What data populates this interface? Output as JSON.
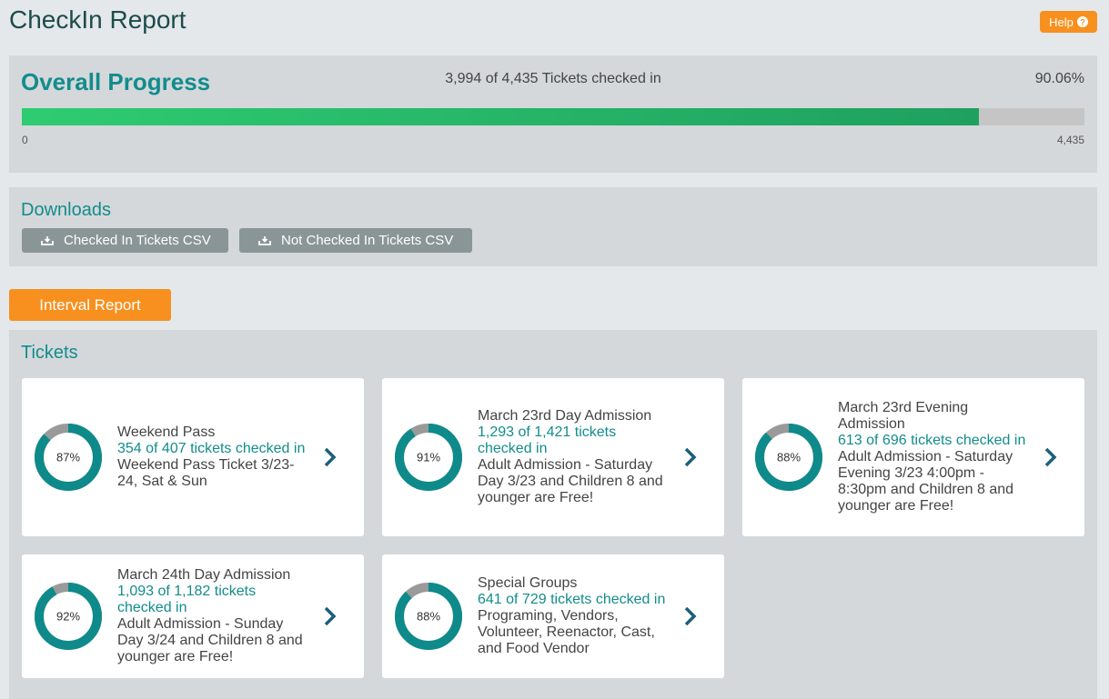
{
  "header": {
    "title": "CheckIn Report",
    "help": "Help"
  },
  "overall": {
    "title": "Overall Progress",
    "summary": "3,994 of 4,435 Tickets checked in",
    "percent": "90.06%",
    "checked": 3994,
    "scale": [
      0,
      {
        "value": 4435,
        "label": "4,435"
      }
    ]
  },
  "downloads": {
    "title": "Downloads",
    "buttons": [
      "Checked In Tickets CSV",
      "Not Checked In Tickets CSV"
    ]
  },
  "interval_button": "Interval Report",
  "tickets": {
    "title": "Tickets",
    "items": [
      {
        "name": "Weekend Pass",
        "checked": "354 of 407 tickets checked in",
        "description": "Weekend Pass Ticket 3/23-24, Sat & Sun",
        "percent": {
          "value": 87,
          "label": "87%"
        }
      },
      {
        "name": "March 23rd Day Admission",
        "checked": "1,293 of 1,421 tickets checked in",
        "description": "Adult Admission - Saturday Day 3/23 and Children 8 and younger are Free!",
        "percent": {
          "value": 91,
          "label": "91%"
        }
      },
      {
        "name": "March 23rd Evening Admission",
        "checked": "613 of 696 tickets checked in",
        "description": "Adult Admission - Saturday Evening 3/23 4:00pm - 8:30pm and Children 8 and younger are Free!",
        "percent": {
          "value": 88,
          "label": "88%"
        }
      },
      {
        "name": "March 24th Day Admission",
        "checked": "1,093 of 1,182 tickets checked in",
        "description": "Adult Admission - Sunday Day 3/24 and Children 8 and younger are Free!",
        "percent": {
          "value": 92,
          "label": "92%"
        }
      },
      {
        "name": "Special Groups",
        "checked": "641 of 729 tickets checked in",
        "description": "Programing, Vendors, Volunteer, Reenactor, Cast, and Food Vendor",
        "percent": {
          "value": 88,
          "label": "88%"
        }
      }
    ]
  }
}
